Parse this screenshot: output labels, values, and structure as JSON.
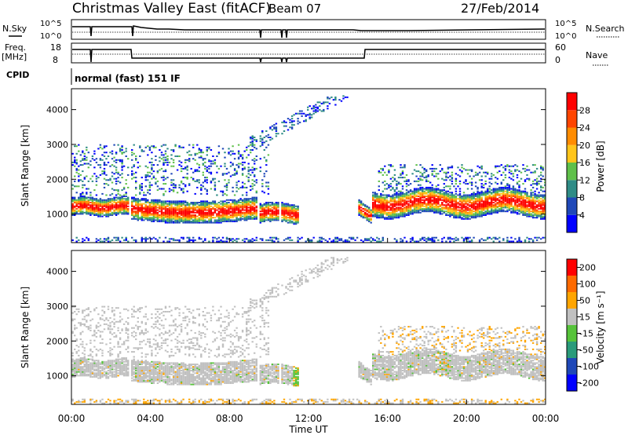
{
  "header": {
    "title": "Christmas Valley East (fitACF)",
    "beam": "Beam 07",
    "date": "27/Feb/2014"
  },
  "noise_panel": {
    "left_label": "N.Sky",
    "left_ticks": [
      "10^5",
      "10^0"
    ],
    "right_ticks": [
      "10^5",
      "10^0"
    ],
    "right_label": "N.Search"
  },
  "freq_panel": {
    "left_label_1": "Freq.",
    "left_label_2": "[MHz]",
    "left_ticks": [
      "18",
      "8"
    ],
    "right_ticks": [
      "60",
      "0"
    ],
    "right_label": "Nave"
  },
  "cpid": {
    "label": "CPID",
    "mode": "normal (fast) 151 IF"
  },
  "chart_data": [
    {
      "type": "heatmap",
      "name": "power",
      "ylabel": "Slant Range [km]",
      "ylim": [
        180,
        4600
      ],
      "yticks": [
        "1000",
        "2000",
        "3000",
        "4000"
      ],
      "colorbar": {
        "label": "Power [dB]",
        "ticks": [
          "4",
          "8",
          "12",
          "16",
          "20",
          "24",
          "28"
        ],
        "colors": [
          "#0000ff",
          "#1f48b8",
          "#2f8c86",
          "#5fc04a",
          "#ffc51a",
          "#ff8c00",
          "#ff4500",
          "#ff0000"
        ]
      }
    },
    {
      "type": "heatmap",
      "name": "velocity",
      "ylabel": "Slant Range [km]",
      "ylim": [
        180,
        4600
      ],
      "yticks": [
        "1000",
        "2000",
        "3000",
        "4000"
      ],
      "colorbar": {
        "label": "Velocity [m s⁻¹]",
        "ticks": [
          "200",
          "100",
          "50",
          "15",
          "-15",
          "-50",
          "-100",
          "-200"
        ],
        "colors": [
          "#0000ff",
          "#1f48b8",
          "#2a9b7a",
          "#56c33a",
          "#c0c0c0",
          "#ffa500",
          "#ff6a00",
          "#ff0000"
        ]
      }
    }
  ],
  "xaxis": {
    "label": "Time UT",
    "ticks": [
      "00:00",
      "04:00",
      "08:00",
      "12:00",
      "16:00",
      "20:00",
      "00:00"
    ]
  }
}
